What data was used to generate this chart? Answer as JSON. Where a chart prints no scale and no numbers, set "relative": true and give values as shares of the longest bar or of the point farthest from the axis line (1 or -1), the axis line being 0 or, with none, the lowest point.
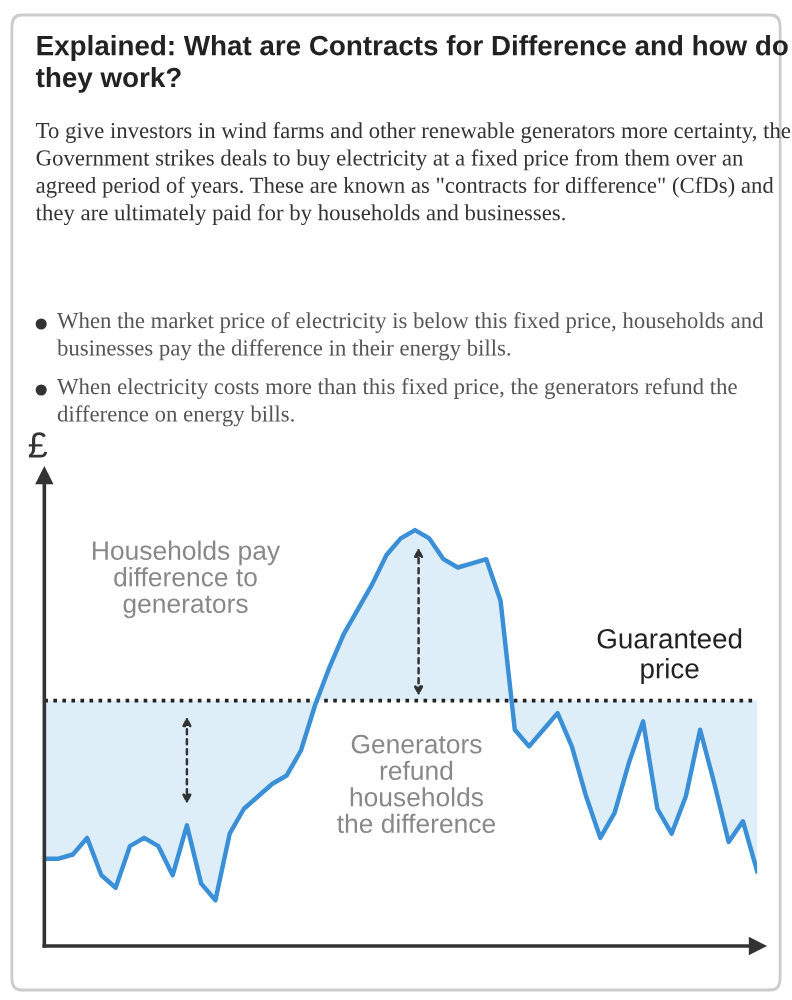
{
  "chart_data": {
    "type": "line",
    "relative": true,
    "title": "Explained: What are Contracts for Difference and how do they work?",
    "subtitle": "To give investors in wind farms and other renewable generators more certainty, the Government strikes deals to buy electricity at a fixed price from them over an agreed period of years. These are known as \"contracts for difference\" (CfDs) and they are ultimately paid for by households and businesses.",
    "ylabel": "£",
    "annotations": [
      "When the market price of electricity is below this fixed price, households and businesses pay the difference in their energy bills.",
      "When electricity costs more than this fixed price, the generators refund the difference on energy bills.",
      "Households pay\ndifference to\ngenerators",
      "Generators\nrefund\nhouseholds\nthe difference"
    ],
    "categories": [
      null,
      null,
      null,
      null,
      null,
      null,
      null,
      null,
      null,
      null,
      null,
      null,
      null,
      null,
      null,
      null,
      null,
      null,
      null,
      null,
      null,
      null,
      null,
      null,
      null,
      null,
      null,
      null,
      null,
      null,
      null,
      null,
      null,
      null,
      null,
      null,
      null,
      null,
      null,
      null,
      null,
      null,
      null,
      null,
      null,
      null,
      null,
      null,
      null,
      null,
      null
    ],
    "series": [
      {
        "color": "#3a8fd6",
        "values": [
          0.21,
          0.21,
          0.22,
          0.26,
          0.17,
          0.14,
          0.24,
          0.26,
          0.24,
          0.17,
          0.29,
          0.15,
          0.11,
          0.27,
          0.33,
          0.36,
          0.39,
          0.41,
          0.47,
          0.58,
          0.67,
          0.75,
          0.81,
          0.87,
          0.94,
          0.98,
          1.0,
          0.98,
          0.93,
          0.91,
          0.92,
          0.93,
          0.83,
          0.52,
          0.48,
          0.52,
          0.56,
          0.48,
          0.36,
          0.26,
          0.32,
          0.44,
          0.54,
          0.33,
          0.27,
          0.36,
          0.52,
          0.39,
          0.25,
          0.3,
          0.18
        ]
      }
    ],
    "ref_lines": [
      {
        "axis": "y",
        "value": 0.59,
        "label": "Guaranteed\nprice",
        "color": "#222222",
        "line_style": "dotted"
      }
    ],
    "legend": false
  }
}
